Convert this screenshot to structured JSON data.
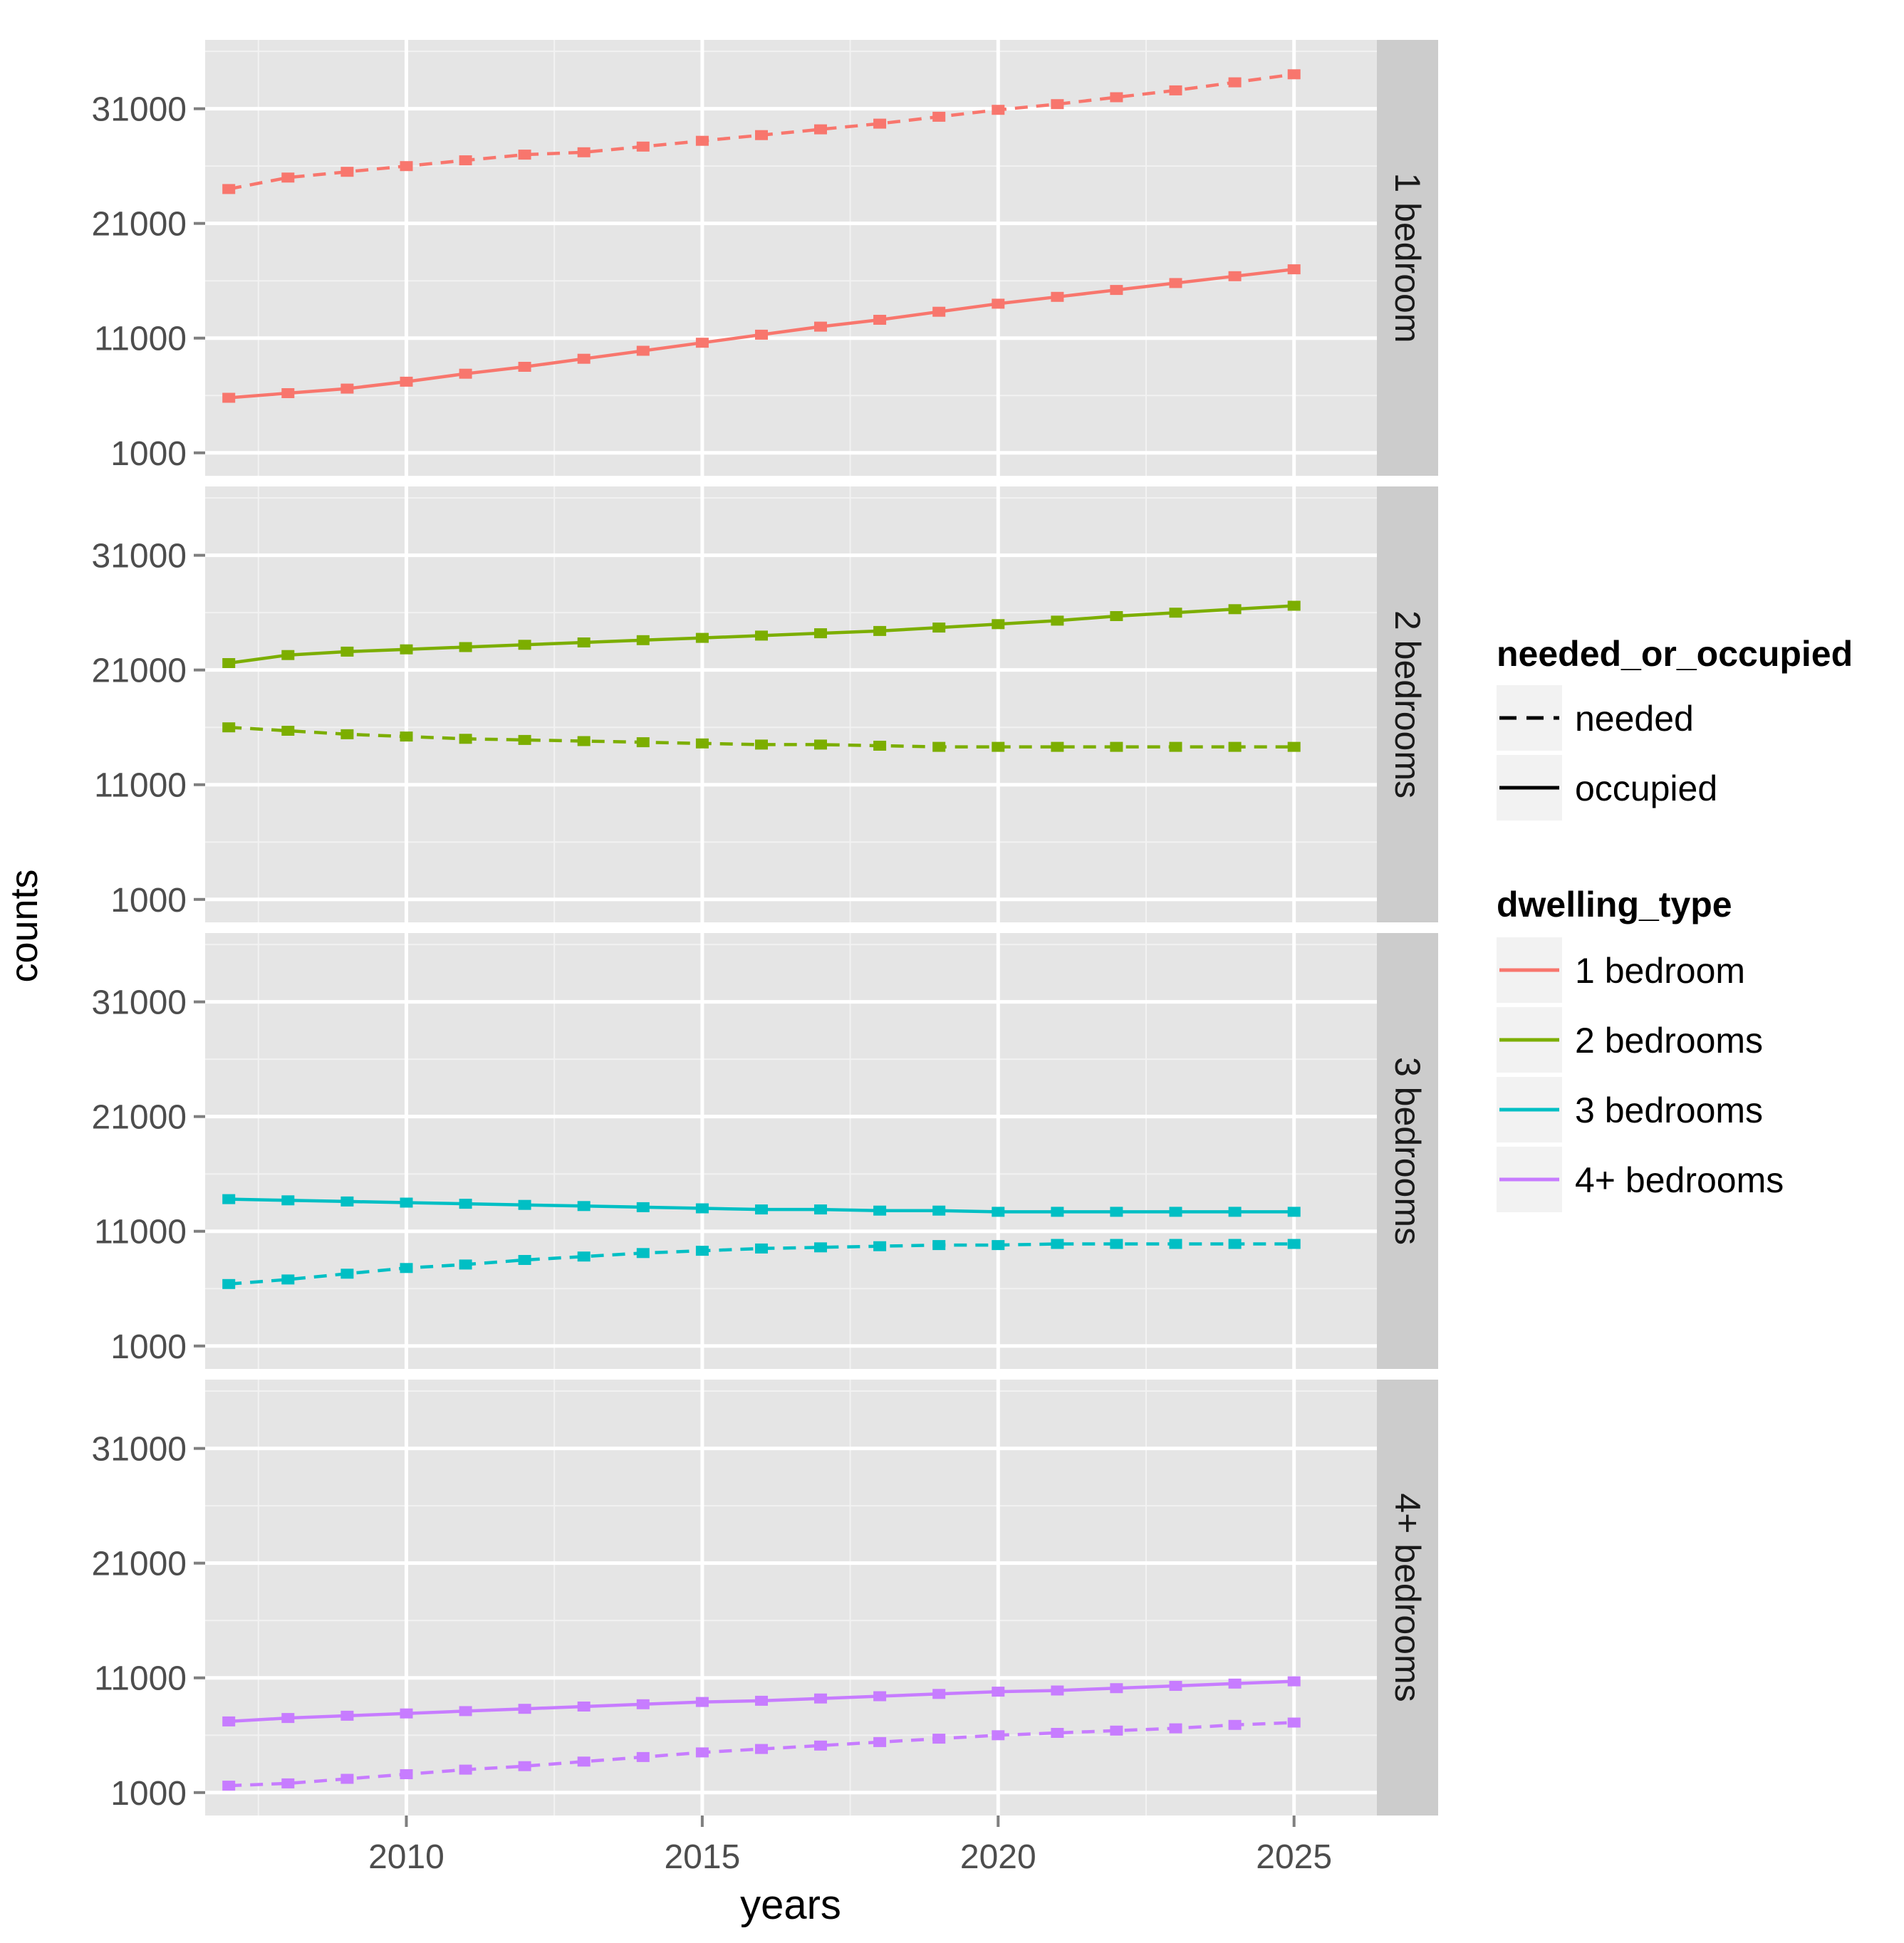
{
  "chart_data": {
    "type": "line",
    "xlabel": "years",
    "ylabel": "counts",
    "xlim": [
      2006.6,
      2026.4
    ],
    "ylim": [
      -1000,
      37000
    ],
    "x_ticks": [
      2010,
      2015,
      2020,
      2025
    ],
    "y_ticks": [
      1000,
      11000,
      21000,
      31000
    ],
    "facets": [
      {
        "label": "1 bedroom",
        "color": "#F8766D",
        "needed": [
          24000,
          25000,
          25500,
          26000,
          26500,
          27000,
          27200,
          27700,
          28200,
          28700,
          29200,
          29700,
          30300,
          30900,
          31400,
          32000,
          32600,
          33300,
          34000
        ],
        "occupied": [
          5800,
          6200,
          6600,
          7200,
          7900,
          8500,
          9200,
          9900,
          10600,
          11300,
          12000,
          12600,
          13300,
          14000,
          14600,
          15200,
          15800,
          16400,
          17000
        ]
      },
      {
        "label": "2 bedrooms",
        "color": "#7CAE00",
        "needed": [
          16000,
          15700,
          15400,
          15200,
          15000,
          14900,
          14800,
          14700,
          14600,
          14500,
          14500,
          14400,
          14300,
          14300,
          14300,
          14300,
          14300,
          14300,
          14300
        ],
        "occupied": [
          21600,
          22300,
          22600,
          22800,
          23000,
          23200,
          23400,
          23600,
          23800,
          24000,
          24200,
          24400,
          24700,
          25000,
          25300,
          25700,
          26000,
          26300,
          26600
        ]
      },
      {
        "label": "3 bedrooms",
        "color": "#00BFC4",
        "needed": [
          6400,
          6800,
          7300,
          7800,
          8100,
          8500,
          8800,
          9100,
          9300,
          9500,
          9600,
          9700,
          9800,
          9800,
          9900,
          9900,
          9900,
          9900,
          9900
        ],
        "occupied": [
          13800,
          13700,
          13600,
          13500,
          13400,
          13300,
          13200,
          13100,
          13000,
          12900,
          12900,
          12800,
          12800,
          12700,
          12700,
          12700,
          12700,
          12700,
          12700
        ]
      },
      {
        "label": "4+ bedrooms",
        "color": "#C77CFF",
        "needed": [
          1600,
          1800,
          2200,
          2600,
          3000,
          3300,
          3700,
          4100,
          4500,
          4800,
          5100,
          5400,
          5700,
          6000,
          6200,
          6400,
          6600,
          6900,
          7100
        ],
        "occupied": [
          7200,
          7500,
          7700,
          7900,
          8100,
          8300,
          8500,
          8700,
          8900,
          9000,
          9200,
          9400,
          9600,
          9800,
          9900,
          10100,
          10300,
          10500,
          10700
        ]
      }
    ],
    "years": [
      2007,
      2008,
      2009,
      2010,
      2011,
      2012,
      2013,
      2014,
      2015,
      2016,
      2017,
      2018,
      2019,
      2020,
      2021,
      2022,
      2023,
      2024,
      2025
    ],
    "legend": {
      "linetype_title": "needed_or_occupied",
      "linetype_items": [
        "needed",
        "occupied"
      ],
      "color_title": "dwelling_type",
      "color_items": [
        "1 bedroom",
        "2 bedrooms",
        "3 bedrooms",
        "4+ bedrooms"
      ],
      "placement": "right"
    }
  }
}
